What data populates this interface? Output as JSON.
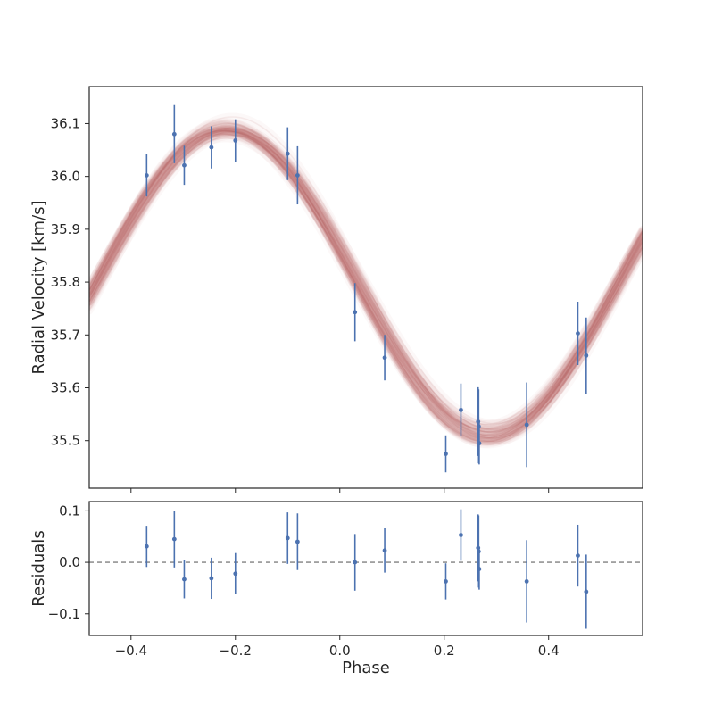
{
  "chart_data": [
    {
      "panel": "main",
      "type": "scatter",
      "xlabel": "",
      "ylabel": "Radial Velocity [km/s]",
      "xlim": [
        -0.48,
        0.58
      ],
      "ylim": [
        35.41,
        36.17
      ],
      "xticks": [
        -0.4,
        -0.2,
        0.0,
        0.2,
        0.4
      ],
      "xtick_labels_visible": false,
      "yticks": [
        35.5,
        35.6,
        35.7,
        35.8,
        35.9,
        36.0,
        36.1
      ],
      "ytick_labels": [
        "35.5",
        "35.6",
        "35.7",
        "35.8",
        "35.9",
        "36.0",
        "36.1"
      ],
      "grid": false,
      "model_curve": {
        "description_type": "posterior sine samples",
        "offset": 35.8,
        "amplitude": 0.29,
        "peak_phase": -0.215,
        "period_phase": 1.0,
        "n_samples": 30,
        "color": "#b05555"
      },
      "points_color": "#4c72b0",
      "points": [
        {
          "x": -0.37,
          "y": 36.002,
          "err": 0.04
        },
        {
          "x": -0.317,
          "y": 36.08,
          "err": 0.055
        },
        {
          "x": -0.298,
          "y": 36.021,
          "err": 0.037
        },
        {
          "x": -0.246,
          "y": 36.055,
          "err": 0.04
        },
        {
          "x": -0.2,
          "y": 36.068,
          "err": 0.04
        },
        {
          "x": -0.1,
          "y": 36.043,
          "err": 0.05
        },
        {
          "x": -0.081,
          "y": 36.002,
          "err": 0.055
        },
        {
          "x": 0.029,
          "y": 35.743,
          "err": 0.055
        },
        {
          "x": 0.086,
          "y": 35.657,
          "err": 0.043
        },
        {
          "x": 0.203,
          "y": 35.475,
          "err": 0.035
        },
        {
          "x": 0.232,
          "y": 35.558,
          "err": 0.05
        },
        {
          "x": 0.265,
          "y": 35.536,
          "err": 0.065
        },
        {
          "x": 0.266,
          "y": 35.527,
          "err": 0.07
        },
        {
          "x": 0.267,
          "y": 35.495,
          "err": 0.04
        },
        {
          "x": 0.358,
          "y": 35.53,
          "err": 0.08
        },
        {
          "x": 0.456,
          "y": 35.703,
          "err": 0.06
        },
        {
          "x": 0.472,
          "y": 35.661,
          "err": 0.072
        }
      ]
    },
    {
      "panel": "residuals",
      "type": "scatter",
      "xlabel": "Phase",
      "ylabel": "Residuals",
      "xlim": [
        -0.48,
        0.58
      ],
      "ylim": [
        -0.142,
        0.118
      ],
      "xticks": [
        -0.4,
        -0.2,
        0.0,
        0.2,
        0.4
      ],
      "xtick_labels": [
        "−0.4",
        "−0.2",
        "0.0",
        "0.2",
        "0.4"
      ],
      "yticks": [
        -0.1,
        0.0,
        0.1
      ],
      "ytick_labels": [
        "−0.1",
        "0.0",
        "0.1"
      ],
      "zero_line": {
        "y": 0.0,
        "style": "dashed",
        "color": "#808080"
      },
      "grid": false,
      "points_color": "#4c72b0",
      "points": [
        {
          "x": -0.37,
          "y": 0.031,
          "err": 0.04
        },
        {
          "x": -0.317,
          "y": 0.045,
          "err": 0.055
        },
        {
          "x": -0.298,
          "y": -0.033,
          "err": 0.037
        },
        {
          "x": -0.246,
          "y": -0.031,
          "err": 0.04
        },
        {
          "x": -0.2,
          "y": -0.022,
          "err": 0.04
        },
        {
          "x": -0.1,
          "y": 0.047,
          "err": 0.05
        },
        {
          "x": -0.081,
          "y": 0.04,
          "err": 0.055
        },
        {
          "x": 0.029,
          "y": 0.0,
          "err": 0.055
        },
        {
          "x": 0.086,
          "y": 0.023,
          "err": 0.043
        },
        {
          "x": 0.203,
          "y": -0.037,
          "err": 0.035
        },
        {
          "x": 0.232,
          "y": 0.053,
          "err": 0.05
        },
        {
          "x": 0.265,
          "y": 0.028,
          "err": 0.065
        },
        {
          "x": 0.266,
          "y": 0.021,
          "err": 0.07
        },
        {
          "x": 0.267,
          "y": -0.013,
          "err": 0.04
        },
        {
          "x": 0.358,
          "y": -0.037,
          "err": 0.08
        },
        {
          "x": 0.456,
          "y": 0.013,
          "err": 0.06
        },
        {
          "x": 0.472,
          "y": -0.057,
          "err": 0.072
        }
      ]
    }
  ]
}
